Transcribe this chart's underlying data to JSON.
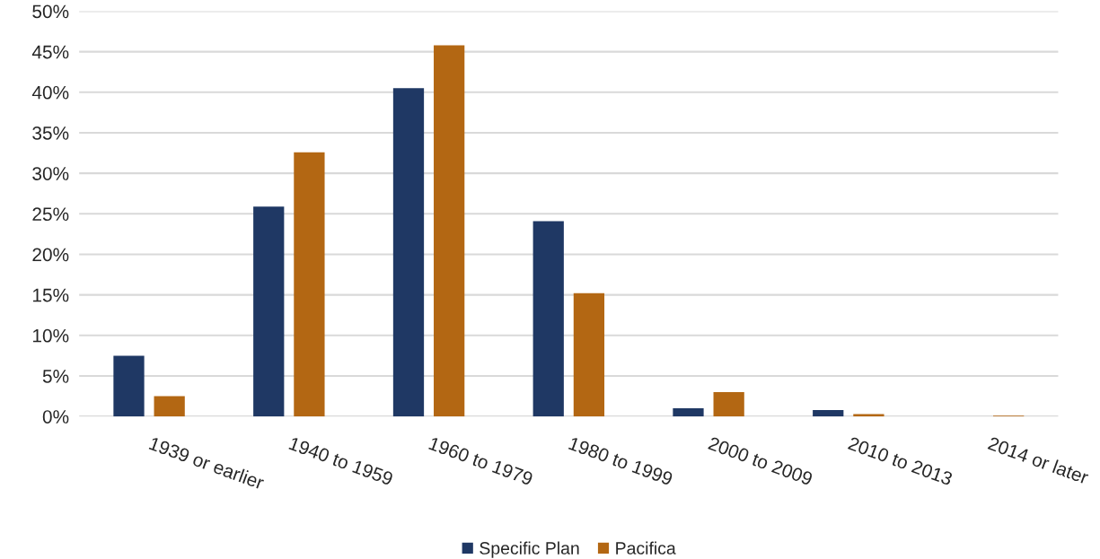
{
  "chart_data": {
    "type": "bar",
    "categories": [
      "1939 or earlier",
      "1940 to 1959",
      "1960 to 1979",
      "1980 to 1999",
      "2000 to 2009",
      "2010 to 2013",
      "2014 or later"
    ],
    "series": [
      {
        "name": "Specific Plan",
        "color": "#1f3864",
        "values": [
          7.5,
          25.9,
          40.5,
          24.1,
          1.0,
          0.8,
          null
        ]
      },
      {
        "name": "Pacifica",
        "color": "#b36713",
        "values": [
          2.5,
          32.6,
          45.8,
          15.2,
          3.0,
          0.3,
          0.1
        ]
      }
    ],
    "ylim": [
      0,
      50
    ],
    "yticks": [
      {
        "value": 0,
        "label": "0%"
      },
      {
        "value": 5,
        "label": "5%"
      },
      {
        "value": 10,
        "label": "10%"
      },
      {
        "value": 15,
        "label": "15%"
      },
      {
        "value": 20,
        "label": "20%"
      },
      {
        "value": 25,
        "label": "25%"
      },
      {
        "value": 30,
        "label": "30%"
      },
      {
        "value": 35,
        "label": "35%"
      },
      {
        "value": 40,
        "label": "40%"
      },
      {
        "value": 45,
        "label": "45%"
      },
      {
        "value": 50,
        "label": "50%"
      }
    ],
    "grid": "y",
    "legend": "bottom"
  }
}
